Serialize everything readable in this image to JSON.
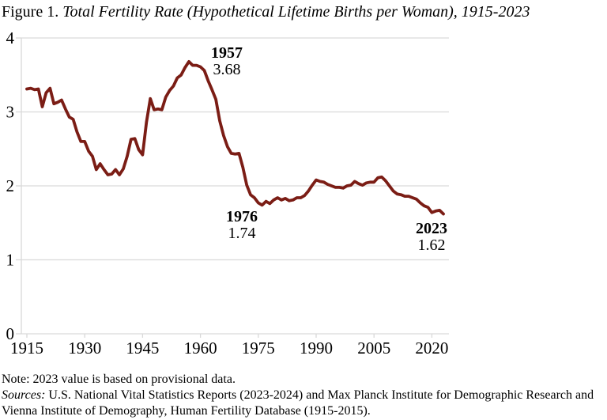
{
  "title": {
    "prefix": "Figure 1. ",
    "italic": "Total Fertility Rate (Hypothetical Lifetime Births per Woman), 1915-2023"
  },
  "chart_data": {
    "type": "line",
    "title": "Total Fertility Rate (Hypothetical Lifetime Births per Woman), 1915-2023",
    "xlabel": "",
    "ylabel": "",
    "xlim": [
      1915,
      2024
    ],
    "ylim": [
      0,
      4
    ],
    "xticks": [
      1915,
      1930,
      1945,
      1960,
      1975,
      1990,
      2005,
      2020
    ],
    "yticks": [
      0,
      1,
      2,
      3,
      4
    ],
    "grid": "horizontal",
    "legend": "none",
    "x": [
      1915,
      1916,
      1917,
      1918,
      1919,
      1920,
      1921,
      1922,
      1923,
      1924,
      1925,
      1926,
      1927,
      1928,
      1929,
      1930,
      1931,
      1932,
      1933,
      1934,
      1935,
      1936,
      1937,
      1938,
      1939,
      1940,
      1941,
      1942,
      1943,
      1944,
      1945,
      1946,
      1947,
      1948,
      1949,
      1950,
      1951,
      1952,
      1953,
      1954,
      1955,
      1956,
      1957,
      1958,
      1959,
      1960,
      1961,
      1962,
      1963,
      1964,
      1965,
      1966,
      1967,
      1968,
      1969,
      1970,
      1971,
      1972,
      1973,
      1974,
      1975,
      1976,
      1977,
      1978,
      1979,
      1980,
      1981,
      1982,
      1983,
      1984,
      1985,
      1986,
      1987,
      1988,
      1989,
      1990,
      1991,
      1992,
      1993,
      1994,
      1995,
      1996,
      1997,
      1998,
      1999,
      2000,
      2001,
      2002,
      2003,
      2004,
      2005,
      2006,
      2007,
      2008,
      2009,
      2010,
      2011,
      2012,
      2013,
      2014,
      2015,
      2016,
      2017,
      2018,
      2019,
      2020,
      2021,
      2022,
      2023
    ],
    "series": [
      {
        "name": "Total fertility rate",
        "color": "#7B1D15",
        "values": [
          3.31,
          3.32,
          3.3,
          3.31,
          3.07,
          3.26,
          3.32,
          3.11,
          3.13,
          3.16,
          3.04,
          2.93,
          2.9,
          2.73,
          2.6,
          2.6,
          2.47,
          2.4,
          2.22,
          2.3,
          2.22,
          2.15,
          2.16,
          2.22,
          2.15,
          2.23,
          2.4,
          2.63,
          2.64,
          2.49,
          2.42,
          2.86,
          3.18,
          3.03,
          3.04,
          3.03,
          3.2,
          3.29,
          3.35,
          3.46,
          3.5,
          3.6,
          3.68,
          3.63,
          3.63,
          3.61,
          3.56,
          3.42,
          3.3,
          3.17,
          2.88,
          2.68,
          2.53,
          2.44,
          2.43,
          2.44,
          2.25,
          2.01,
          1.88,
          1.84,
          1.77,
          1.74,
          1.79,
          1.76,
          1.81,
          1.84,
          1.81,
          1.83,
          1.8,
          1.81,
          1.84,
          1.84,
          1.87,
          1.93,
          2.01,
          2.08,
          2.06,
          2.05,
          2.02,
          2.0,
          1.98,
          1.98,
          1.97,
          2.0,
          2.01,
          2.06,
          2.03,
          2.01,
          2.04,
          2.05,
          2.05,
          2.11,
          2.12,
          2.07,
          2.0,
          1.93,
          1.89,
          1.88,
          1.86,
          1.86,
          1.84,
          1.82,
          1.77,
          1.73,
          1.71,
          1.64,
          1.66,
          1.67,
          1.62
        ]
      }
    ],
    "annotations": [
      {
        "year": "1957",
        "value": "3.68"
      },
      {
        "year": "1976",
        "value": "1.74"
      },
      {
        "year": "2023",
        "value": "1.62"
      }
    ]
  },
  "notes": {
    "note": "Note: 2023 value is based on provisional data.",
    "sources_label": "Sources:",
    "sources_rest": " U.S. National Vital Statistics Reports (2023-2024) and Max Planck Institute for Demographic Research and Vienna Institute of Demography, Human Fertility Database (1915-2015)."
  },
  "colors": {
    "line": "#7B1D15",
    "grid": "#D9D9D9",
    "text": "#000000",
    "background": "#FFFFFF"
  }
}
